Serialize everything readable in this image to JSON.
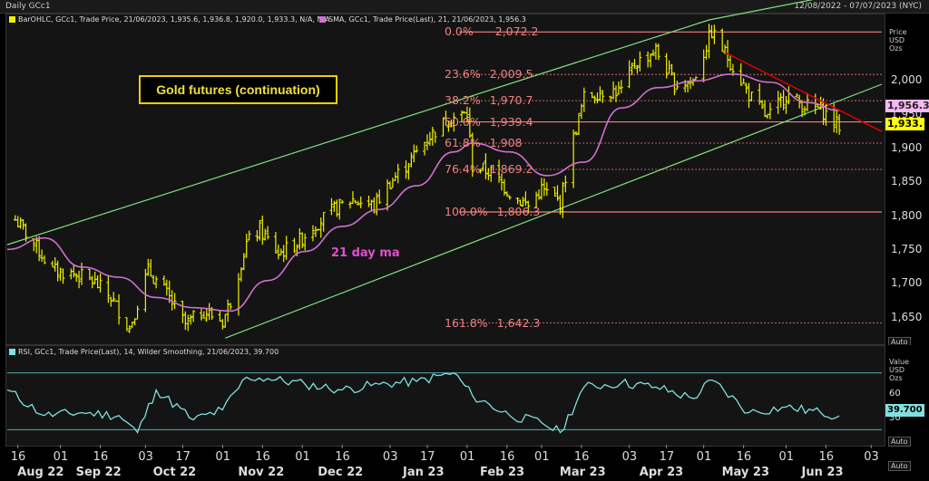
{
  "header": {
    "left_title": "Daily GCc1",
    "date_range": "12/08/2022 - 07/07/2023 (NYC)"
  },
  "legend_main": {
    "ohlc": "BarOHLC, GCc1, Trade Price, 21/06/2023, 1,935.6, 1,936.8, 1,920.0, 1,933.3, N/A, N/A",
    "sma": "SMA, GCc1, Trade Price(Last), 21, 21/06/2023, 1,956.3"
  },
  "legend_rsi": "RSI, GCc1, Trade Price(Last), 14, Wilder Smoothing, 21/06/2023, 39.700",
  "annotations": {
    "title_box": "Gold futures (continuation)",
    "ma_label": "21 day ma"
  },
  "axis_main": {
    "header": [
      "Price",
      "USD",
      "Ozs"
    ],
    "auto": "Auto",
    "badge_sma": "1,956.3",
    "badge_price": "1,933.",
    "ticks": [
      "2,000",
      "1,950",
      "1,900",
      "1,850",
      "1,800",
      "1,750",
      "1,700",
      "1,650"
    ]
  },
  "axis_rsi": {
    "header": [
      "Value",
      "USD",
      "Ozs"
    ],
    "auto": "Auto",
    "badge": "39.700",
    "ticks": [
      "60",
      "30"
    ]
  },
  "axis_x": {
    "auto": "Auto",
    "days": [
      "16",
      "01",
      "16",
      "03",
      "17",
      "01",
      "16",
      "01",
      "16",
      "03",
      "17",
      "01",
      "16",
      "01",
      "16",
      "03",
      "17",
      "01",
      "16",
      "01",
      "16",
      "03"
    ],
    "months": [
      "Aug 22",
      "Sep 22",
      "Oct 22",
      "Nov 22",
      "Dec 22",
      "Jan 23",
      "Feb 23",
      "Mar 23",
      "Apr 23",
      "May 23",
      "Jun 23"
    ]
  },
  "fib_levels": [
    {
      "label": "0.0%",
      "value": "2,072.2"
    },
    {
      "label": "23.6%",
      "value": "2,009.5"
    },
    {
      "label": "38.2%",
      "value": "1,970.7"
    },
    {
      "label": "50.0%",
      "value": "1,939.4"
    },
    {
      "label": "61.8%",
      "value": "1,908"
    },
    {
      "label": "76.4%",
      "value": "1,869.2"
    },
    {
      "label": "100.0%",
      "value": "1,806.3"
    },
    {
      "label": "161.8%",
      "value": "1,642.3"
    }
  ],
  "colors": {
    "price_bars": "#f0f000",
    "sma": "#d070d0",
    "channel": "#80e080",
    "fib": "#f08080",
    "downtrend": "#e00000",
    "rsi": "#80e0e0",
    "rsi_levels": "#60c0c0"
  },
  "chart_data": [
    {
      "type": "line",
      "ylim": [
        1615,
        2090
      ],
      "x_range": [
        "2022-08-12",
        "2023-07-07"
      ],
      "price_series": [
        [
          "2022-08-15",
          1795
        ],
        [
          "2022-08-22",
          1760
        ],
        [
          "2022-08-29",
          1720
        ],
        [
          "2022-09-06",
          1715
        ],
        [
          "2022-09-13",
          1705
        ],
        [
          "2022-09-20",
          1680
        ],
        [
          "2022-09-27",
          1635
        ],
        [
          "2022-10-04",
          1720
        ],
        [
          "2022-10-11",
          1685
        ],
        [
          "2022-10-18",
          1640
        ],
        [
          "2022-10-25",
          1660
        ],
        [
          "2022-11-01",
          1645
        ],
        [
          "2022-11-04",
          1675
        ],
        [
          "2022-11-10",
          1760
        ],
        [
          "2022-11-15",
          1780
        ],
        [
          "2022-11-22",
          1745
        ],
        [
          "2022-11-29",
          1760
        ],
        [
          "2022-12-05",
          1785
        ],
        [
          "2022-12-13",
          1810
        ],
        [
          "2022-12-20",
          1825
        ],
        [
          "2022-12-28",
          1815
        ],
        [
          "2023-01-03",
          1850
        ],
        [
          "2023-01-10",
          1880
        ],
        [
          "2023-01-17",
          1915
        ],
        [
          "2023-01-25",
          1945
        ],
        [
          "2023-02-01",
          1950
        ],
        [
          "2023-02-03",
          1875
        ],
        [
          "2023-02-10",
          1865
        ],
        [
          "2023-02-17",
          1835
        ],
        [
          "2023-02-24",
          1815
        ],
        [
          "2023-03-01",
          1840
        ],
        [
          "2023-03-08",
          1820
        ],
        [
          "2023-03-13",
          1915
        ],
        [
          "2023-03-17",
          1975
        ],
        [
          "2023-03-24",
          1985
        ],
        [
          "2023-03-31",
          1985
        ],
        [
          "2023-04-05",
          2025
        ],
        [
          "2023-04-13",
          2045
        ],
        [
          "2023-04-20",
          1995
        ],
        [
          "2023-04-27",
          2000
        ],
        [
          "2023-05-04",
          2072
        ],
        [
          "2023-05-10",
          2035
        ],
        [
          "2023-05-18",
          1980
        ],
        [
          "2023-05-25",
          1945
        ],
        [
          "2023-06-01",
          1980
        ],
        [
          "2023-06-07",
          1965
        ],
        [
          "2023-06-14",
          1958
        ],
        [
          "2023-06-21",
          1933
        ]
      ],
      "sma_series": [
        [
          "2022-08-12",
          1751
        ],
        [
          "2022-08-26",
          1768
        ],
        [
          "2022-09-09",
          1725
        ],
        [
          "2022-09-23",
          1710
        ],
        [
          "2022-10-07",
          1680
        ],
        [
          "2022-10-21",
          1665
        ],
        [
          "2022-11-04",
          1660
        ],
        [
          "2022-11-18",
          1705
        ],
        [
          "2022-12-02",
          1748
        ],
        [
          "2022-12-16",
          1785
        ],
        [
          "2022-12-30",
          1810
        ],
        [
          "2023-01-13",
          1845
        ],
        [
          "2023-01-27",
          1895
        ],
        [
          "2023-02-03",
          1908
        ],
        [
          "2023-02-17",
          1895
        ],
        [
          "2023-03-03",
          1860
        ],
        [
          "2023-03-17",
          1880
        ],
        [
          "2023-03-31",
          1960
        ],
        [
          "2023-04-14",
          1990
        ],
        [
          "2023-04-28",
          2000
        ],
        [
          "2023-05-12",
          2010
        ],
        [
          "2023-05-26",
          1998
        ],
        [
          "2023-06-09",
          1968
        ],
        [
          "2023-06-21",
          1956.3
        ]
      ]
    },
    {
      "type": "line",
      "ylim": [
        20,
        80
      ],
      "levels": [
        70,
        30
      ],
      "rsi_series": [
        [
          "2022-08-12",
          58
        ],
        [
          "2022-08-26",
          40
        ],
        [
          "2022-09-09",
          42
        ],
        [
          "2022-09-23",
          40
        ],
        [
          "2022-09-30",
          28
        ],
        [
          "2022-10-07",
          58
        ],
        [
          "2022-10-21",
          37
        ],
        [
          "2022-11-01",
          44
        ],
        [
          "2022-11-10",
          67
        ],
        [
          "2022-11-18",
          66
        ],
        [
          "2022-12-02",
          62
        ],
        [
          "2022-12-16",
          58
        ],
        [
          "2022-12-30",
          62
        ],
        [
          "2023-01-13",
          64
        ],
        [
          "2023-01-27",
          70
        ],
        [
          "2023-02-03",
          54
        ],
        [
          "2023-02-17",
          40
        ],
        [
          "2023-03-01",
          35
        ],
        [
          "2023-03-08",
          28
        ],
        [
          "2023-03-17",
          60
        ],
        [
          "2023-03-31",
          63
        ],
        [
          "2023-04-13",
          60
        ],
        [
          "2023-04-27",
          52
        ],
        [
          "2023-05-04",
          65
        ],
        [
          "2023-05-18",
          42
        ],
        [
          "2023-06-01",
          46
        ],
        [
          "2023-06-14",
          42
        ],
        [
          "2023-06-21",
          39.7
        ]
      ]
    }
  ]
}
